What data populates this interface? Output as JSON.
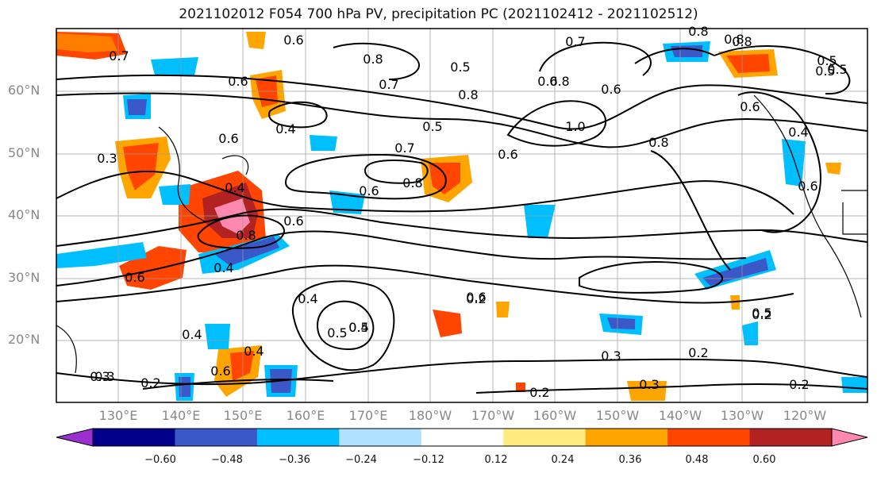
{
  "title": "2021102012 F054 700 hPa PV, precipitation PC (2021102412 - 2021102512)",
  "lat_labels": [
    "60°N",
    "50°N",
    "40°N",
    "30°N",
    "20°N"
  ],
  "lon_labels": [
    "130°E",
    "140°E",
    "150°E",
    "160°E",
    "170°E",
    "180°W",
    "170°W",
    "160°W",
    "150°W",
    "140°W",
    "130°W",
    "120°W"
  ],
  "colorbar": {
    "ticks": [
      "−0.60",
      "−0.48",
      "−0.36",
      "−0.24",
      "−0.12",
      "0.12",
      "0.24",
      "0.36",
      "0.48",
      "0.60"
    ],
    "colors": [
      "#9b30d0",
      "#00008b",
      "#3a58c8",
      "#00bfff",
      "#b0e2ff",
      "#ffffff",
      "#ffeb80",
      "#ffa500",
      "#ff4500",
      "#b22222",
      "#ff88b0"
    ]
  },
  "contour_labels": [
    "0.6",
    "0.7",
    "0.8",
    "0.5",
    "0.7",
    "0.6",
    "0.8",
    "0.6",
    "0.8",
    "0.5",
    "0.7",
    "0.8",
    "0.6",
    "0.4",
    "0.8",
    "0.8",
    "1.0",
    "0.6",
    "0.8",
    "0.3",
    "0.6",
    "0.4",
    "0.3",
    "0.7",
    "0.8",
    "0.6",
    "0.5",
    "0.6",
    "0.4",
    "0.6",
    "0.4",
    "0.8",
    "0.5",
    "0.4",
    "0.6",
    "0.6",
    "0.6",
    "0.4",
    "0.5",
    "0.3",
    "0.6",
    "0.4",
    "0.5",
    "0.4",
    "0.2",
    "0.3",
    "0.2",
    "0.3",
    "0.2",
    "0.2",
    "0.2",
    "0.5",
    "0.2",
    "0.5"
  ]
}
